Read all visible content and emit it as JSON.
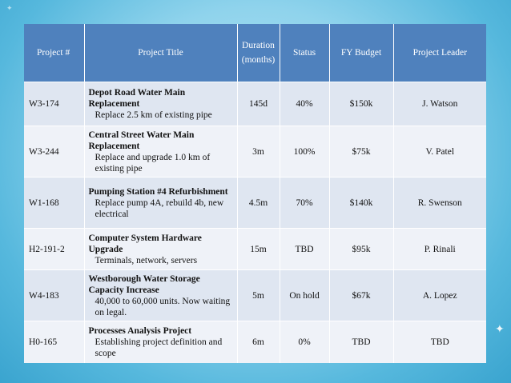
{
  "table": {
    "headers": {
      "project_no": "Project #",
      "title": "Project Title",
      "duration": "Duration (months)",
      "status": "Status",
      "budget": "FY Budget",
      "leader": "Project Leader"
    },
    "rows": [
      {
        "id": "W3-174",
        "title": "Depot Road Water Main Replacement",
        "desc": "Replace 2.5 km of existing pipe",
        "duration": "145d",
        "status": "40%",
        "budget": "$150k",
        "leader": "J. Watson"
      },
      {
        "id": "W3-244",
        "title": "Central Street Water Main Replacement",
        "desc": "Replace and upgrade 1.0 km of existing pipe",
        "duration": "3m",
        "status": "100%",
        "budget": "$75k",
        "leader": "V. Patel"
      },
      {
        "id": "W1-168",
        "title": "Pumping Station #4 Refurbishment",
        "desc": "Replace pump 4A, rebuild 4b, new electrical",
        "duration": "4.5m",
        "status": "70%",
        "budget": "$140k",
        "leader": "R. Swenson"
      },
      {
        "id": "H2-191-2",
        "title": "Computer System Hardware Upgrade",
        "desc": "Terminals, network, servers",
        "duration": "15m",
        "status": "TBD",
        "budget": "$95k",
        "leader": "P. Rinali"
      },
      {
        "id": "W4-183",
        "title": "Westborough Water Storage Capacity Increase",
        "desc": "40,000 to 60,000 units. Now waiting on legal.",
        "duration": "5m",
        "status": "On hold",
        "budget": "$67k",
        "leader": "A. Lopez"
      },
      {
        "id": "H0-165",
        "title": "Processes Analysis Project",
        "desc": "Establishing project definition and scope",
        "duration": "6m",
        "status": "0%",
        "budget": "TBD",
        "leader": "TBD"
      }
    ]
  }
}
